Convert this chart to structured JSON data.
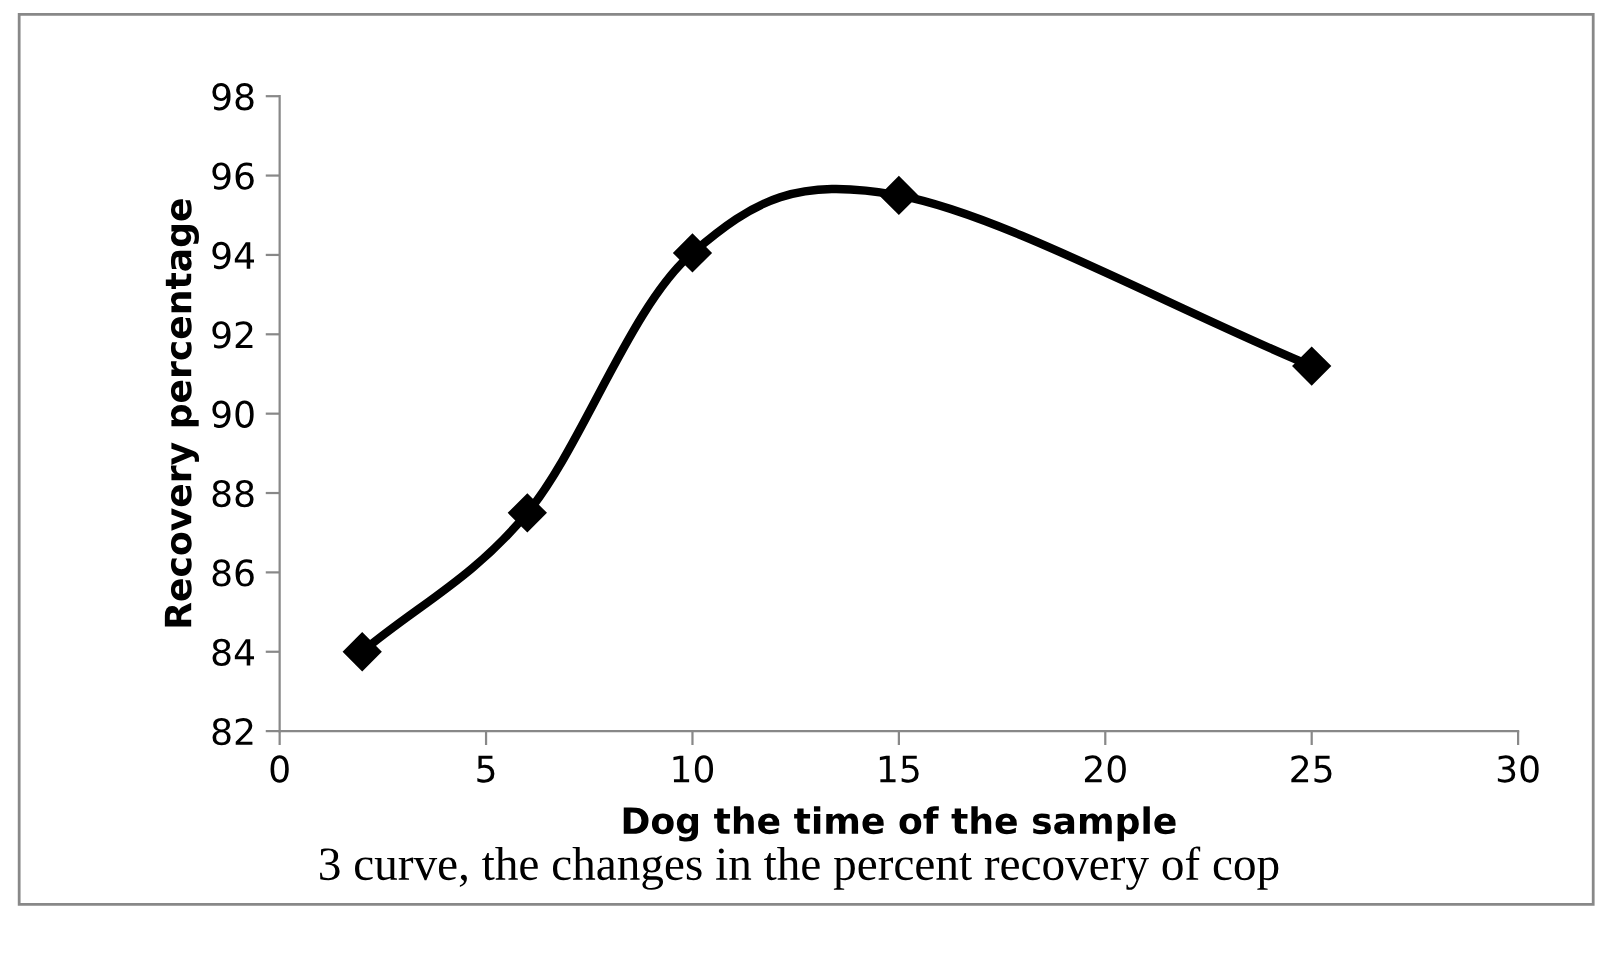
{
  "chart_data": {
    "type": "line",
    "xlabel": "Dog the time of the sample",
    "ylabel": "Recovery percentage",
    "x": [
      2,
      6,
      10,
      15,
      25
    ],
    "series": [
      {
        "color": "#000000",
        "values": [
          84,
          87.5,
          94.05,
          95.5,
          91.2
        ]
      }
    ],
    "xlim": [
      0,
      30
    ],
    "xticks": [
      0,
      5,
      10,
      15,
      20,
      25,
      30
    ],
    "ylim": [
      82,
      98
    ],
    "yticks": [
      82,
      84,
      86,
      88,
      90,
      92,
      94,
      96,
      98
    ],
    "marker": "diamond",
    "line_style": "solid",
    "grid": false,
    "legend": false,
    "annotations": [
      "3 curve, the changes in the percent recovery of cop"
    ]
  }
}
